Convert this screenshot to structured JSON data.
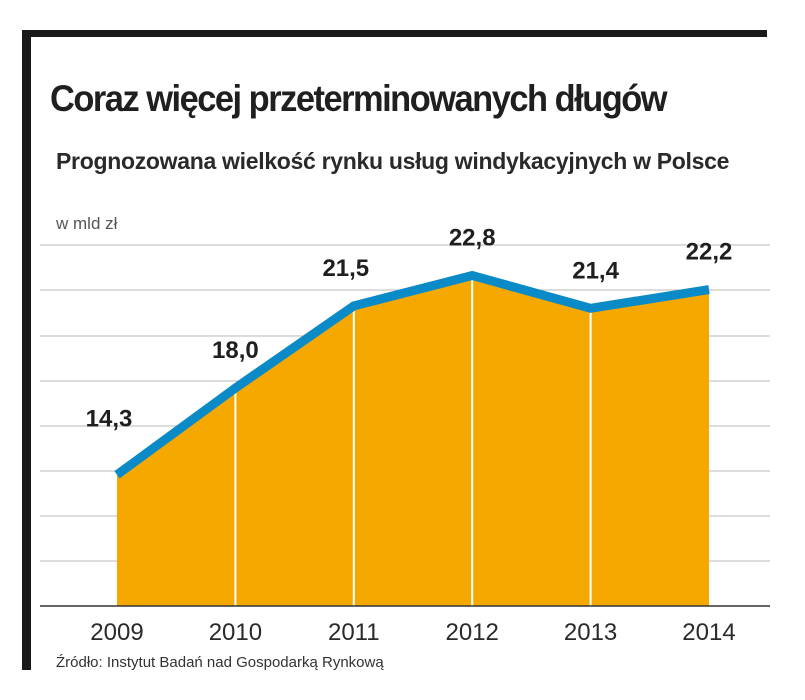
{
  "title": "Coraz więcej przeterminowanych długów",
  "subtitle": "Prognozowana wielkość rynku usług windykacyjnych w Polsce",
  "unit": "w mld zł",
  "source": "Źródło: Instytut Badań nad Gospodarką Rynkową",
  "colors": {
    "area": "#f5a800",
    "line": "#0a8ac6",
    "grid": "#b8b8b8",
    "frame": "#1a1a1a"
  },
  "chart_data": {
    "type": "area",
    "categories": [
      "2009",
      "2010",
      "2011",
      "2012",
      "2013",
      "2014"
    ],
    "values": [
      14.3,
      18.0,
      21.5,
      22.8,
      21.4,
      22.2
    ],
    "value_labels": [
      "14,3",
      "18,0",
      "21,5",
      "22,8",
      "21,4",
      "22,2"
    ],
    "title": "Coraz więcej przeterminowanych długów",
    "subtitle": "Prognozowana wielkość rynku usług windykacyjnych w Polsce",
    "ylabel": "w mld zł",
    "ylim": [
      8.7,
      24.1
    ],
    "grid": true
  }
}
